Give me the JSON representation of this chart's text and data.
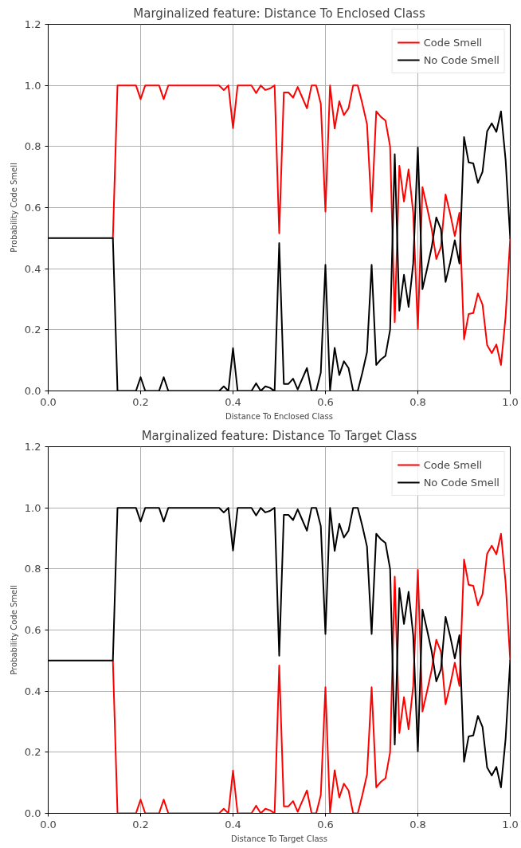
{
  "chart_data": [
    {
      "type": "line",
      "title": "Marginalized feature: Distance To Enclosed Class",
      "xlabel": "Distance To Enclosed Class",
      "ylabel": "Probability Code Smell",
      "x": [
        0,
        0.01,
        0.02,
        0.03,
        0.04,
        0.05,
        0.06,
        0.07,
        0.08,
        0.09,
        0.1,
        0.11,
        0.12,
        0.13,
        0.14,
        0.15,
        0.16,
        0.17,
        0.18,
        0.19,
        0.2,
        0.21,
        0.22,
        0.23,
        0.24,
        0.25,
        0.26,
        0.27,
        0.28,
        0.29,
        0.3,
        0.31,
        0.32,
        0.33,
        0.34,
        0.35,
        0.36,
        0.37,
        0.38,
        0.39,
        0.4,
        0.41,
        0.42,
        0.43,
        0.44,
        0.45,
        0.46,
        0.47,
        0.48,
        0.49,
        0.5,
        0.51,
        0.52,
        0.53,
        0.54,
        0.55,
        0.56,
        0.57,
        0.58,
        0.59,
        0.6,
        0.61,
        0.62,
        0.63,
        0.64,
        0.65,
        0.66,
        0.67,
        0.68,
        0.69,
        0.7,
        0.71,
        0.72,
        0.73,
        0.74,
        0.75,
        0.76,
        0.77,
        0.78,
        0.79,
        0.8,
        0.81,
        0.82,
        0.83,
        0.84,
        0.85,
        0.86,
        0.87,
        0.88,
        0.89,
        0.9,
        0.91,
        0.92,
        0.93,
        0.94,
        0.95,
        0.96,
        0.97,
        0.98,
        0.99,
        1
      ],
      "series": [
        {
          "name": "Code Smell",
          "color": "#ff0000",
          "values": [
            null,
            null,
            null,
            null,
            null,
            null,
            null,
            null,
            null,
            null,
            null,
            null,
            null,
            null,
            0.5,
            1,
            1,
            1,
            1,
            1,
            0.955,
            1,
            1,
            1,
            1,
            0.955,
            1,
            1,
            1,
            1,
            1,
            1,
            1,
            1,
            1,
            1,
            1,
            1,
            0.985,
            1,
            0.86,
            1,
            1,
            1,
            1,
            0.975,
            1,
            0.985,
            0.99,
            1,
            0.516,
            0.977,
            0.977,
            0.96,
            0.995,
            0.96,
            0.925,
            1,
            1,
            0.94,
            0.587,
            1,
            0.859,
            0.948,
            0.903,
            0.925,
            1,
            1,
            0.94,
            0.873,
            0.587,
            0.915,
            0.897,
            0.885,
            0.8,
            0.225,
            0.737,
            0.62,
            0.725,
            0.583,
            0.203,
            0.667,
            0.6,
            0.53,
            0.432,
            0.471,
            0.643,
            0.58,
            0.507,
            0.583,
            0.169,
            0.252,
            0.255,
            0.319,
            0.283,
            0.15,
            0.124,
            0.152,
            0.085,
            0.245,
            0.502
          ]
        },
        {
          "name": "No Code Smell",
          "color": "#000000",
          "values": [
            0.5,
            0.5,
            0.5,
            0.5,
            0.5,
            0.5,
            0.5,
            0.5,
            0.5,
            0.5,
            0.5,
            0.5,
            0.5,
            0.5,
            0.5,
            0,
            0,
            0,
            0,
            0,
            0.045,
            0,
            0,
            0,
            0,
            0.045,
            0,
            0,
            0,
            0,
            0,
            0,
            0,
            0,
            0,
            0,
            0,
            0,
            0.015,
            0,
            0.14,
            0,
            0,
            0,
            0,
            0.025,
            0,
            0.015,
            0.01,
            0,
            0.484,
            0.023,
            0.023,
            0.04,
            0.005,
            0.04,
            0.075,
            0,
            0,
            0.06,
            0.413,
            0,
            0.141,
            0.052,
            0.097,
            0.075,
            0,
            0,
            0.06,
            0.127,
            0.413,
            0.085,
            0.103,
            0.115,
            0.2,
            0.775,
            0.263,
            0.38,
            0.275,
            0.417,
            0.797,
            0.333,
            0.4,
            0.47,
            0.568,
            0.529,
            0.357,
            0.42,
            0.493,
            0.417,
            0.831,
            0.748,
            0.745,
            0.681,
            0.717,
            0.85,
            0.876,
            0.848,
            0.915,
            0.755,
            0.498
          ]
        }
      ],
      "xlim": [
        0,
        1
      ],
      "ylim": [
        0,
        1.2
      ],
      "xticks": [
        {
          "value": 0,
          "label": "0.0"
        },
        {
          "value": 0.2,
          "label": "0.2"
        },
        {
          "value": 0.4,
          "label": "0.4"
        },
        {
          "value": 0.6,
          "label": "0.6"
        },
        {
          "value": 0.8,
          "label": "0.8"
        },
        {
          "value": 1,
          "label": "1.0"
        }
      ],
      "yticks": [
        {
          "value": 0,
          "label": "0.0"
        },
        {
          "value": 0.2,
          "label": "0.2"
        },
        {
          "value": 0.4,
          "label": "0.4"
        },
        {
          "value": 0.6,
          "label": "0.6"
        },
        {
          "value": 0.8,
          "label": "0.8"
        },
        {
          "value": 1,
          "label": "1.0"
        },
        {
          "value": 1.2,
          "label": "1.2"
        }
      ],
      "grid": true,
      "legend": "top right"
    },
    {
      "type": "line",
      "title": "Marginalized feature: Distance To Target Class",
      "xlabel": "Distance To Target Class",
      "ylabel": "Probability Code Smell",
      "x": [
        0,
        0.01,
        0.02,
        0.03,
        0.04,
        0.05,
        0.06,
        0.07,
        0.08,
        0.09,
        0.1,
        0.11,
        0.12,
        0.13,
        0.14,
        0.15,
        0.16,
        0.17,
        0.18,
        0.19,
        0.2,
        0.21,
        0.22,
        0.23,
        0.24,
        0.25,
        0.26,
        0.27,
        0.28,
        0.29,
        0.3,
        0.31,
        0.32,
        0.33,
        0.34,
        0.35,
        0.36,
        0.37,
        0.38,
        0.39,
        0.4,
        0.41,
        0.42,
        0.43,
        0.44,
        0.45,
        0.46,
        0.47,
        0.48,
        0.49,
        0.5,
        0.51,
        0.52,
        0.53,
        0.54,
        0.55,
        0.56,
        0.57,
        0.58,
        0.59,
        0.6,
        0.61,
        0.62,
        0.63,
        0.64,
        0.65,
        0.66,
        0.67,
        0.68,
        0.69,
        0.7,
        0.71,
        0.72,
        0.73,
        0.74,
        0.75,
        0.76,
        0.77,
        0.78,
        0.79,
        0.8,
        0.81,
        0.82,
        0.83,
        0.84,
        0.85,
        0.86,
        0.87,
        0.88,
        0.89,
        0.9,
        0.91,
        0.92,
        0.93,
        0.94,
        0.95,
        0.96,
        0.97,
        0.98,
        0.99,
        1
      ],
      "series": [
        {
          "name": "Code Smell",
          "color": "#ff0000",
          "values": [
            null,
            null,
            null,
            null,
            null,
            null,
            null,
            null,
            null,
            null,
            null,
            null,
            null,
            null,
            0.5,
            0,
            0,
            0,
            0,
            0,
            0.045,
            0,
            0,
            0,
            0,
            0.045,
            0,
            0,
            0,
            0,
            0,
            0,
            0,
            0,
            0,
            0,
            0,
            0,
            0.015,
            0,
            0.14,
            0,
            0,
            0,
            0,
            0.025,
            0,
            0.015,
            0.01,
            0,
            0.484,
            0.023,
            0.023,
            0.04,
            0.005,
            0.04,
            0.075,
            0,
            0,
            0.06,
            0.413,
            0,
            0.141,
            0.052,
            0.097,
            0.075,
            0,
            0,
            0.06,
            0.127,
            0.413,
            0.085,
            0.103,
            0.115,
            0.2,
            0.775,
            0.263,
            0.38,
            0.275,
            0.417,
            0.797,
            0.333,
            0.4,
            0.47,
            0.568,
            0.529,
            0.357,
            0.42,
            0.493,
            0.417,
            0.831,
            0.748,
            0.745,
            0.681,
            0.717,
            0.85,
            0.876,
            0.848,
            0.915,
            0.755,
            0.498
          ]
        },
        {
          "name": "No Code Smell",
          "color": "#000000",
          "values": [
            0.5,
            0.5,
            0.5,
            0.5,
            0.5,
            0.5,
            0.5,
            0.5,
            0.5,
            0.5,
            0.5,
            0.5,
            0.5,
            0.5,
            0.5,
            1,
            1,
            1,
            1,
            1,
            0.955,
            1,
            1,
            1,
            1,
            0.955,
            1,
            1,
            1,
            1,
            1,
            1,
            1,
            1,
            1,
            1,
            1,
            1,
            0.985,
            1,
            0.86,
            1,
            1,
            1,
            1,
            0.975,
            1,
            0.985,
            0.99,
            1,
            0.516,
            0.977,
            0.977,
            0.96,
            0.995,
            0.96,
            0.925,
            1,
            1,
            0.94,
            0.587,
            1,
            0.859,
            0.948,
            0.903,
            0.925,
            1,
            1,
            0.94,
            0.873,
            0.587,
            0.915,
            0.897,
            0.885,
            0.8,
            0.225,
            0.737,
            0.62,
            0.725,
            0.583,
            0.203,
            0.667,
            0.6,
            0.53,
            0.432,
            0.471,
            0.643,
            0.58,
            0.507,
            0.583,
            0.169,
            0.252,
            0.255,
            0.319,
            0.283,
            0.15,
            0.124,
            0.152,
            0.085,
            0.245,
            0.502
          ]
        }
      ],
      "xlim": [
        0,
        1
      ],
      "ylim": [
        0,
        1.2
      ],
      "xticks": [
        {
          "value": 0,
          "label": "0.0"
        },
        {
          "value": 0.2,
          "label": "0.2"
        },
        {
          "value": 0.4,
          "label": "0.4"
        },
        {
          "value": 0.6,
          "label": "0.6"
        },
        {
          "value": 0.8,
          "label": "0.8"
        },
        {
          "value": 1,
          "label": "1.0"
        }
      ],
      "yticks": [
        {
          "value": 0,
          "label": "0.0"
        },
        {
          "value": 0.2,
          "label": "0.2"
        },
        {
          "value": 0.4,
          "label": "0.4"
        },
        {
          "value": 0.6,
          "label": "0.6"
        },
        {
          "value": 0.8,
          "label": "0.8"
        },
        {
          "value": 1,
          "label": "1.0"
        },
        {
          "value": 1.2,
          "label": "1.2"
        }
      ],
      "grid": true,
      "legend": "top right"
    }
  ]
}
